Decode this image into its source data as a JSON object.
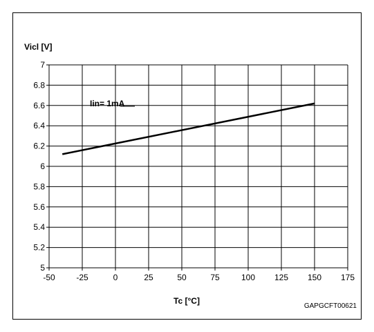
{
  "chart_data": {
    "type": "line",
    "ylabel": "Vicl [V]",
    "xlabel": "Tc [°C]",
    "annotation": "Iin= 1mA",
    "figure_code": "GAPGCFT00621",
    "xlim": [
      -50,
      175
    ],
    "ylim": [
      5,
      7
    ],
    "x_ticks": [
      "-50",
      "-25",
      "0",
      "25",
      "50",
      "75",
      "100",
      "125",
      "150",
      "175"
    ],
    "y_ticks": [
      "7",
      "6.8",
      "6.6",
      "6.4",
      "6.2",
      "6",
      "5.8",
      "5.6",
      "5.4",
      "5.2",
      "5"
    ],
    "grid": true,
    "series": [
      {
        "x": [
          -40,
          150
        ],
        "y": [
          6.12,
          6.62
        ],
        "color": "#000000"
      }
    ]
  }
}
